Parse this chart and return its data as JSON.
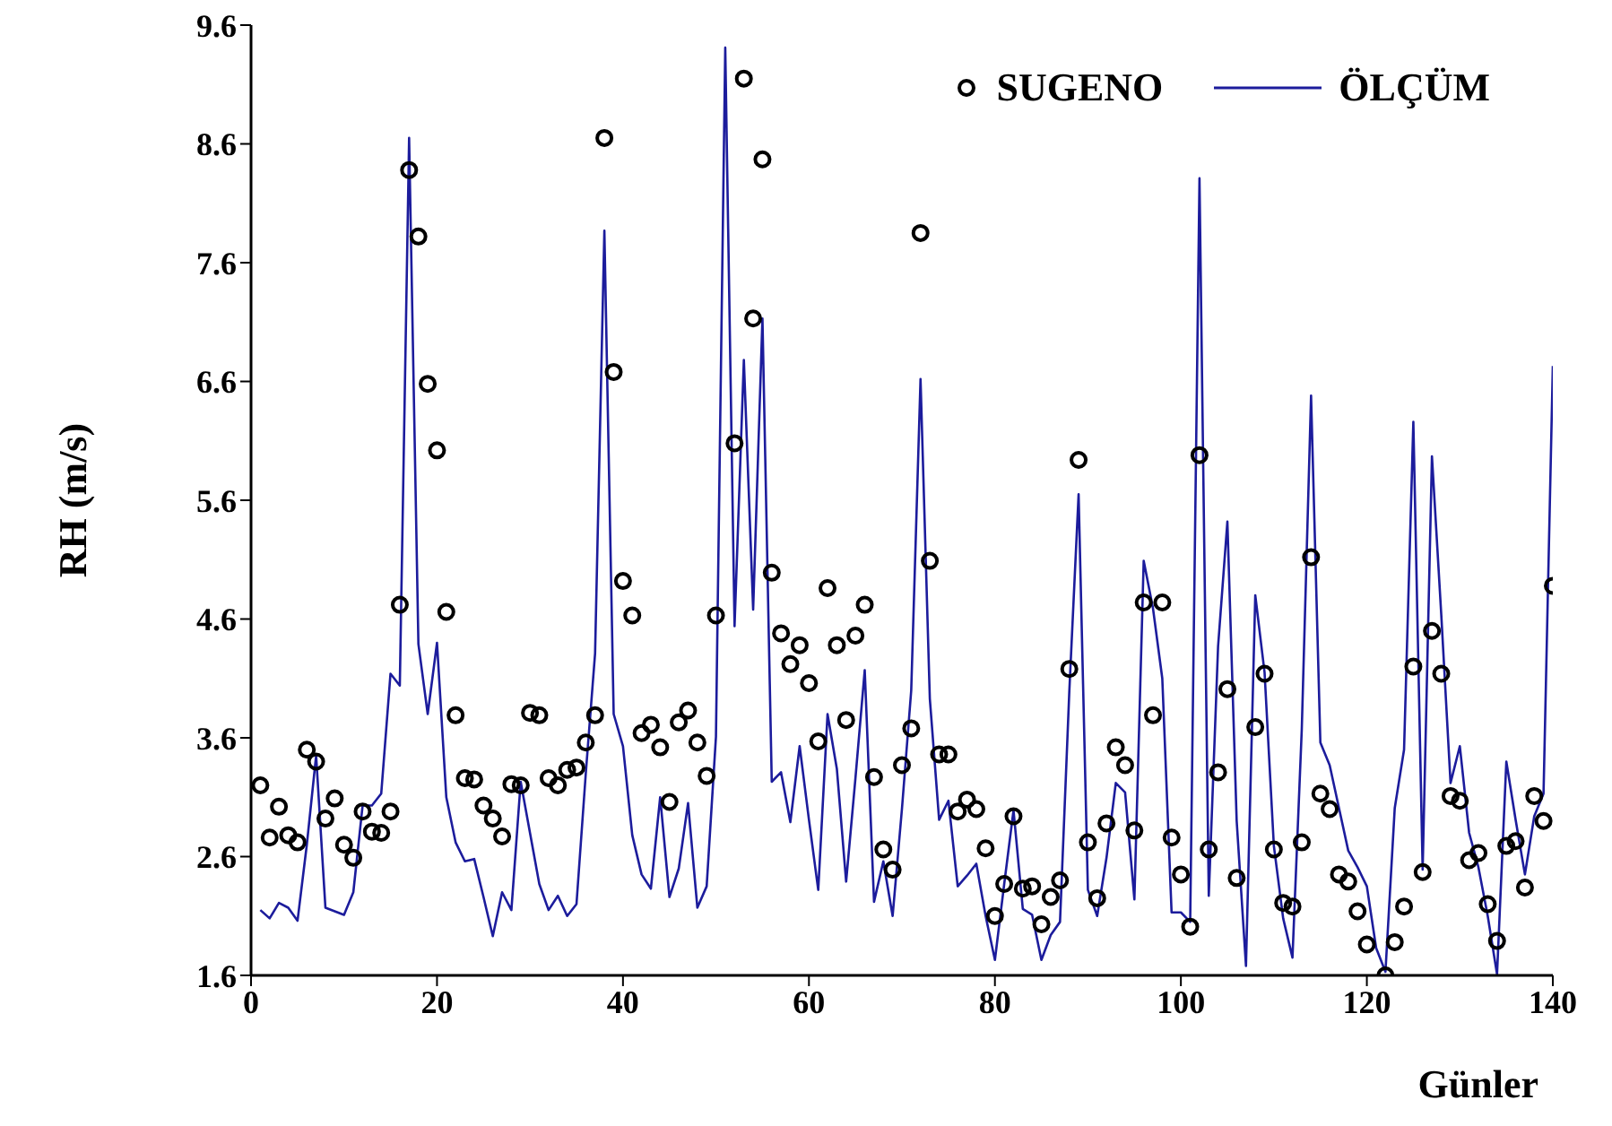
{
  "chart_data": {
    "type": "line",
    "xlabel": "Günler",
    "ylabel": "RH (m/s)",
    "x": [
      1,
      2,
      3,
      4,
      5,
      6,
      7,
      8,
      9,
      10,
      11,
      12,
      13,
      14,
      15,
      16,
      17,
      18,
      19,
      20,
      21,
      22,
      23,
      24,
      25,
      26,
      27,
      28,
      29,
      30,
      31,
      32,
      33,
      34,
      35,
      36,
      37,
      38,
      39,
      40,
      41,
      42,
      43,
      44,
      45,
      46,
      47,
      48,
      49,
      50,
      51,
      52,
      53,
      54,
      55,
      56,
      57,
      58,
      59,
      60,
      61,
      62,
      63,
      64,
      65,
      66,
      67,
      68,
      69,
      70,
      71,
      72,
      73,
      74,
      75,
      76,
      77,
      78,
      79,
      80,
      81,
      82,
      83,
      84,
      85,
      86,
      87,
      88,
      89,
      90,
      91,
      92,
      93,
      94,
      95,
      96,
      97,
      98,
      99,
      100,
      101,
      102,
      103,
      104,
      105,
      106,
      107,
      108,
      109,
      110,
      111,
      112,
      113,
      114,
      115,
      116,
      117,
      118,
      119,
      120,
      121,
      122,
      123,
      124,
      125,
      126,
      127,
      128,
      129,
      130,
      131,
      132,
      133,
      134,
      135,
      136,
      137,
      138,
      139,
      140
    ],
    "series": [
      {
        "name": "SUGENO",
        "type": "scatter",
        "marker": "circle",
        "color": "#000000",
        "values": [
          3.2,
          2.76,
          3.02,
          2.78,
          2.72,
          3.5,
          3.4,
          2.92,
          3.09,
          2.7,
          2.59,
          2.98,
          2.81,
          2.8,
          2.98,
          4.72,
          8.38,
          7.82,
          6.58,
          6.02,
          4.66,
          3.79,
          3.26,
          3.25,
          3.03,
          2.92,
          2.77,
          3.21,
          3.2,
          3.81,
          3.79,
          3.26,
          3.2,
          3.33,
          3.35,
          3.56,
          3.79,
          8.65,
          6.68,
          4.92,
          4.63,
          3.64,
          3.71,
          3.52,
          3.06,
          3.73,
          3.83,
          3.56,
          3.28,
          4.63,
          null,
          6.08,
          9.15,
          7.13,
          8.47,
          4.99,
          4.48,
          4.22,
          4.38,
          4.06,
          3.57,
          4.86,
          4.38,
          3.75,
          4.46,
          4.72,
          3.27,
          2.66,
          2.49,
          3.37,
          3.68,
          7.85,
          5.09,
          3.46,
          3.46,
          2.98,
          3.08,
          3.0,
          2.67,
          2.1,
          2.37,
          2.94,
          2.33,
          2.35,
          2.03,
          2.26,
          2.4,
          4.18,
          5.94,
          2.72,
          2.25,
          2.88,
          3.52,
          3.37,
          2.82,
          4.74,
          3.79,
          4.74,
          2.76,
          2.45,
          2.01,
          5.98,
          2.66,
          3.31,
          4.01,
          2.42,
          null,
          3.69,
          4.14,
          2.66,
          2.21,
          2.18,
          2.72,
          5.12,
          3.13,
          3.0,
          2.45,
          2.39,
          2.14,
          1.86,
          null,
          1.6,
          1.88,
          2.18,
          4.2,
          2.47,
          4.5,
          4.14,
          3.11,
          3.07,
          2.57,
          2.63,
          2.2,
          1.89,
          2.69,
          2.73,
          2.34,
          3.11,
          2.9,
          4.88
        ]
      },
      {
        "name": "ÖLÇÜM",
        "marker": "none",
        "line_style": "solid",
        "color": "#1c1c9c",
        "values": [
          2.15,
          2.08,
          2.21,
          2.17,
          2.06,
          2.7,
          3.45,
          2.17,
          2.14,
          2.11,
          2.3,
          3.03,
          3.03,
          3.13,
          4.14,
          4.04,
          8.65,
          4.39,
          3.8,
          4.4,
          3.1,
          2.72,
          2.56,
          2.58,
          2.26,
          1.93,
          2.3,
          2.15,
          3.23,
          2.8,
          2.37,
          2.15,
          2.27,
          2.1,
          2.2,
          3.3,
          4.31,
          7.87,
          3.8,
          3.53,
          2.78,
          2.45,
          2.33,
          3.1,
          2.26,
          2.5,
          3.05,
          2.17,
          2.35,
          3.61,
          9.41,
          4.54,
          6.78,
          4.68,
          7.13,
          3.23,
          3.31,
          2.89,
          3.53,
          2.91,
          2.32,
          3.8,
          3.34,
          2.39,
          3.26,
          4.17,
          2.22,
          2.56,
          2.1,
          3.0,
          4.0,
          6.62,
          3.93,
          2.91,
          3.07,
          2.35,
          2.44,
          2.54,
          2.1,
          1.73,
          2.37,
          2.99,
          2.16,
          2.11,
          1.73,
          1.94,
          2.05,
          3.99,
          5.65,
          2.32,
          2.1,
          2.59,
          3.22,
          3.14,
          2.24,
          5.09,
          4.69,
          4.1,
          2.13,
          2.13,
          2.05,
          8.31,
          2.27,
          4.37,
          5.42,
          2.9,
          1.68,
          4.8,
          4.15,
          2.69,
          2.08,
          1.75,
          3.67,
          6.48,
          3.56,
          3.37,
          3.01,
          2.65,
          2.51,
          2.35,
          1.83,
          1.63,
          3.01,
          3.5,
          6.26,
          2.49,
          5.97,
          4.64,
          3.22,
          3.53,
          2.8,
          2.51,
          2.1,
          1.61,
          3.4,
          2.91,
          2.45,
          2.94,
          3.13,
          6.73
        ]
      }
    ],
    "xlim": [
      0,
      140
    ],
    "xticks": [
      0,
      20,
      40,
      60,
      80,
      100,
      120,
      140
    ],
    "ylim": [
      1.6,
      9.6
    ],
    "yticks": [
      1.6,
      2.6,
      3.6,
      4.6,
      5.6,
      6.6,
      7.6,
      8.6,
      9.6
    ],
    "grid": false,
    "legend": "top right"
  }
}
